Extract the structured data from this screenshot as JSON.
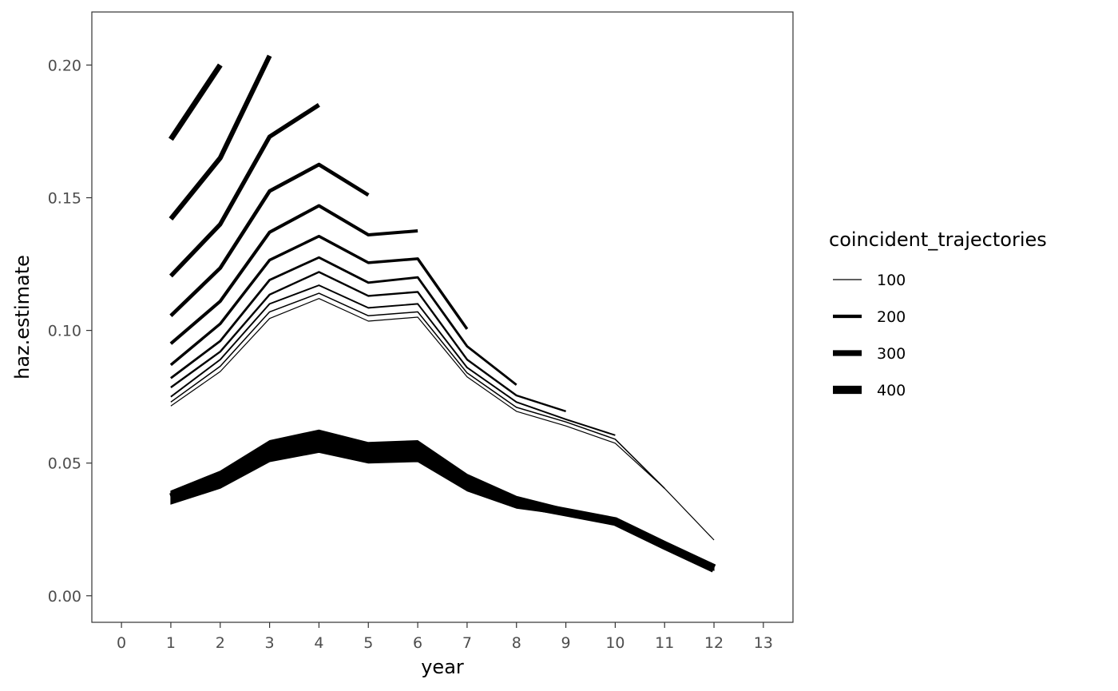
{
  "chart_data": {
    "type": "line",
    "xlabel": "year",
    "ylabel": "haz.estimate",
    "xlim": [
      -0.6,
      13.6
    ],
    "ylim": [
      -0.01,
      0.22
    ],
    "x_ticks": [
      0,
      1,
      2,
      3,
      4,
      5,
      6,
      7,
      8,
      9,
      10,
      11,
      12,
      13
    ],
    "y_ticks": [
      0.0,
      0.05,
      0.1,
      0.15,
      0.2
    ],
    "y_tick_labels": [
      "0.00",
      "0.05",
      "0.10",
      "0.15",
      "0.20"
    ],
    "grid": false,
    "line_color": "#000000",
    "legend": {
      "title": "coincident_trajectories",
      "position": "right",
      "entries": [
        {
          "label": "100",
          "value": 100
        },
        {
          "label": "200",
          "value": 200
        },
        {
          "label": "300",
          "value": 300
        },
        {
          "label": "400",
          "value": 400
        }
      ]
    },
    "series": [
      {
        "size": 100,
        "x": [
          1,
          2,
          3,
          4,
          5,
          6,
          7,
          8,
          9,
          10,
          11,
          12
        ],
        "y": [
          0.0715,
          0.0845,
          0.1045,
          0.112,
          0.1035,
          0.105,
          0.0825,
          0.0695,
          0.064,
          0.0575,
          0.0405,
          0.021
        ]
      },
      {
        "size": 110,
        "x": [
          1,
          2,
          3,
          4,
          5,
          6,
          7,
          8,
          9,
          10,
          11
        ],
        "y": [
          0.073,
          0.0865,
          0.107,
          0.114,
          0.1055,
          0.107,
          0.084,
          0.071,
          0.0655,
          0.059,
          0.0405
        ]
      },
      {
        "size": 125,
        "x": [
          1,
          2,
          3,
          4,
          5,
          6,
          7,
          8,
          9,
          10
        ],
        "y": [
          0.075,
          0.089,
          0.11,
          0.117,
          0.1085,
          0.11,
          0.086,
          0.073,
          0.0665,
          0.0605
        ]
      },
      {
        "size": 140,
        "x": [
          1,
          2,
          3,
          4,
          5,
          6,
          7,
          8,
          9
        ],
        "y": [
          0.0785,
          0.092,
          0.1135,
          0.122,
          0.113,
          0.1145,
          0.089,
          0.0755,
          0.0695
        ]
      },
      {
        "size": 155,
        "x": [
          1,
          2,
          3,
          4,
          5,
          6,
          7,
          8
        ],
        "y": [
          0.082,
          0.096,
          0.119,
          0.1275,
          0.118,
          0.12,
          0.094,
          0.0795
        ]
      },
      {
        "size": 175,
        "x": [
          1,
          2,
          3,
          4,
          5,
          6,
          7
        ],
        "y": [
          0.087,
          0.1025,
          0.1265,
          0.1355,
          0.1255,
          0.127,
          0.1005
        ]
      },
      {
        "size": 195,
        "x": [
          1,
          2,
          3,
          4,
          5,
          6
        ],
        "y": [
          0.095,
          0.111,
          0.137,
          0.147,
          0.136,
          0.1375
        ]
      },
      {
        "size": 215,
        "x": [
          1,
          2,
          3,
          4,
          5
        ],
        "y": [
          0.1055,
          0.1235,
          0.1525,
          0.1625,
          0.151
        ]
      },
      {
        "size": 240,
        "x": [
          1,
          2,
          3,
          4
        ],
        "y": [
          0.1205,
          0.14,
          0.173,
          0.185
        ]
      },
      {
        "size": 265,
        "x": [
          1,
          2,
          3
        ],
        "y": [
          0.142,
          0.165,
          0.2035
        ]
      },
      {
        "size": 290,
        "x": [
          1,
          2
        ],
        "y": [
          0.172,
          0.2
        ]
      },
      {
        "size": 420,
        "x": [
          1,
          2,
          3,
          4,
          5,
          6,
          7,
          8,
          9,
          10,
          11,
          12
        ],
        "y": [
          0.037,
          0.0435,
          0.054,
          0.0575,
          0.0535,
          0.054,
          0.0425,
          0.035,
          0.0315,
          0.028,
          0.019,
          0.0103
        ]
      }
    ],
    "bottom_band": {
      "x": [
        1,
        2,
        3,
        4,
        5,
        6,
        7,
        8,
        9,
        10,
        11,
        12
      ],
      "ymin": [
        0.0345,
        0.0405,
        0.0505,
        0.054,
        0.05,
        0.0505,
        0.0395,
        0.033,
        0.0305,
        0.0275,
        0.019,
        0.0095
      ],
      "ymax": [
        0.0395,
        0.047,
        0.0585,
        0.0625,
        0.0578,
        0.0585,
        0.0458,
        0.0375,
        0.0328,
        0.029,
        0.0195,
        0.011
      ]
    }
  }
}
